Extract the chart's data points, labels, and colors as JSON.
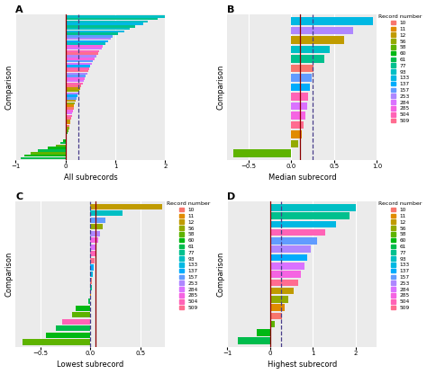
{
  "record_numbers": [
    10,
    11,
    12,
    56,
    58,
    60,
    61,
    77,
    93,
    133,
    137,
    157,
    253,
    284,
    285,
    504,
    509
  ],
  "colors": {
    "10": "#F8766D",
    "11": "#E08B00",
    "12": "#C09B00",
    "56": "#93AA00",
    "58": "#5EB300",
    "60": "#00B813",
    "61": "#00BC4C",
    "77": "#00C08E",
    "93": "#00BFC4",
    "133": "#00B8E3",
    "137": "#00ACFC",
    "157": "#619CFF",
    "253": "#AE87FF",
    "284": "#DA72FF",
    "285": "#F564E2",
    "504": "#FF63B6",
    "509": "#FF6C90"
  },
  "panel_A": {
    "title": "A",
    "xlabel": "All subrecords",
    "ylabel": "Comparison",
    "xlim": [
      -1.0,
      2.0
    ],
    "xticks": [
      -1,
      0,
      1,
      2
    ],
    "vline_solid": 0.0,
    "vline_dashed": 0.25
  },
  "panel_A_bars": [
    {
      "record": "93",
      "value": 2.0
    },
    {
      "record": "77",
      "value": 1.85
    },
    {
      "record": "93",
      "value": 1.65
    },
    {
      "record": "133",
      "value": 1.55
    },
    {
      "record": "77",
      "value": 1.4
    },
    {
      "record": "93",
      "value": 1.28
    },
    {
      "record": "133",
      "value": 1.18
    },
    {
      "record": "77",
      "value": 1.05
    },
    {
      "record": "157",
      "value": 0.95
    },
    {
      "record": "253",
      "value": 0.9
    },
    {
      "record": "137",
      "value": 0.85
    },
    {
      "record": "93",
      "value": 0.8
    },
    {
      "record": "285",
      "value": 0.75
    },
    {
      "record": "284",
      "value": 0.72
    },
    {
      "record": "504",
      "value": 0.68
    },
    {
      "record": "509",
      "value": 0.65
    },
    {
      "record": "253",
      "value": 0.62
    },
    {
      "record": "285",
      "value": 0.58
    },
    {
      "record": "157",
      "value": 0.55
    },
    {
      "record": "284",
      "value": 0.52
    },
    {
      "record": "137",
      "value": 0.5
    },
    {
      "record": "504",
      "value": 0.48
    },
    {
      "record": "509",
      "value": 0.45
    },
    {
      "record": "253",
      "value": 0.43
    },
    {
      "record": "157",
      "value": 0.4
    },
    {
      "record": "285",
      "value": 0.38
    },
    {
      "record": "284",
      "value": 0.36
    },
    {
      "record": "504",
      "value": 0.34
    },
    {
      "record": "509",
      "value": 0.32
    },
    {
      "record": "12",
      "value": 0.3
    },
    {
      "record": "56",
      "value": 0.28
    },
    {
      "record": "253",
      "value": 0.26
    },
    {
      "record": "137",
      "value": 0.24
    },
    {
      "record": "157",
      "value": 0.22
    },
    {
      "record": "12",
      "value": 0.2
    },
    {
      "record": "56",
      "value": 0.18
    },
    {
      "record": "11",
      "value": 0.17
    },
    {
      "record": "10",
      "value": 0.16
    },
    {
      "record": "285",
      "value": 0.15
    },
    {
      "record": "284",
      "value": 0.14
    },
    {
      "record": "504",
      "value": 0.13
    },
    {
      "record": "509",
      "value": 0.12
    },
    {
      "record": "12",
      "value": 0.1
    },
    {
      "record": "11",
      "value": 0.09
    },
    {
      "record": "10",
      "value": 0.08
    },
    {
      "record": "56",
      "value": 0.07
    },
    {
      "record": "58",
      "value": 0.06
    },
    {
      "record": "60",
      "value": 0.05
    },
    {
      "record": "61",
      "value": 0.03
    },
    {
      "record": "58",
      "value": 0.01
    },
    {
      "record": "60",
      "value": -0.05
    },
    {
      "record": "61",
      "value": -0.1
    },
    {
      "record": "58",
      "value": -0.2
    },
    {
      "record": "60",
      "value": -0.35
    },
    {
      "record": "61",
      "value": -0.55
    },
    {
      "record": "58",
      "value": -0.7
    },
    {
      "record": "60",
      "value": -0.82
    },
    {
      "record": "61",
      "value": -0.9
    }
  ],
  "panel_B": {
    "title": "B",
    "xlabel": "Median subrecord",
    "ylabel": "Comparison",
    "xlim": [
      -0.75,
      1.0
    ],
    "xticks": [
      -0.5,
      0.0,
      0.5,
      1.0
    ],
    "vline_solid": 0.1,
    "vline_dashed": 0.25,
    "bars": [
      {
        "record": "133",
        "value": 0.95
      },
      {
        "record": "253",
        "value": 0.72
      },
      {
        "record": "12",
        "value": 0.62
      },
      {
        "record": "93",
        "value": 0.45
      },
      {
        "record": "77",
        "value": 0.38
      },
      {
        "record": "10",
        "value": 0.26
      },
      {
        "record": "157",
        "value": 0.24
      },
      {
        "record": "137",
        "value": 0.22
      },
      {
        "record": "504",
        "value": 0.2
      },
      {
        "record": "284",
        "value": 0.18
      },
      {
        "record": "285",
        "value": 0.16
      },
      {
        "record": "509",
        "value": 0.14
      },
      {
        "record": "11",
        "value": 0.12
      },
      {
        "record": "56",
        "value": 0.08
      },
      {
        "record": "58",
        "value": -0.68
      }
    ]
  },
  "panel_C": {
    "title": "C",
    "xlabel": "Lowest subrecord",
    "ylabel": "Comparison",
    "xlim": [
      -0.75,
      0.75
    ],
    "xticks": [
      -0.5,
      0.0,
      0.5
    ],
    "vline_solid": 0.05,
    "vline_dashed": 0.0,
    "bars": [
      {
        "record": "12",
        "value": 0.72
      },
      {
        "record": "93",
        "value": 0.32
      },
      {
        "record": "157",
        "value": 0.15
      },
      {
        "record": "56",
        "value": 0.12
      },
      {
        "record": "253",
        "value": 0.1
      },
      {
        "record": "285",
        "value": 0.08
      },
      {
        "record": "284",
        "value": 0.06
      },
      {
        "record": "504",
        "value": 0.05
      },
      {
        "record": "509",
        "value": 0.04
      },
      {
        "record": "137",
        "value": 0.03
      },
      {
        "record": "133",
        "value": 0.02
      },
      {
        "record": "10",
        "value": 0.01
      },
      {
        "record": "77",
        "value": 0.01
      },
      {
        "record": "11",
        "value": 0.005
      },
      {
        "record": "61",
        "value": -0.02
      },
      {
        "record": "60",
        "value": -0.15
      },
      {
        "record": "58",
        "value": -0.18
      },
      {
        "record": "504",
        "value": -0.28
      },
      {
        "record": "61",
        "value": -0.35
      },
      {
        "record": "60",
        "value": -0.45
      },
      {
        "record": "58",
        "value": -0.68
      }
    ]
  },
  "panel_D": {
    "title": "D",
    "xlabel": "Highest subrecord",
    "ylabel": "Comparison",
    "xlim": [
      -1.0,
      2.5
    ],
    "xticks": [
      -1,
      0,
      1,
      2
    ],
    "vline_solid": 0.0,
    "vline_dashed": 0.25,
    "bars": [
      {
        "record": "93",
        "value": 2.0
      },
      {
        "record": "77",
        "value": 1.85
      },
      {
        "record": "133",
        "value": 1.55
      },
      {
        "record": "504",
        "value": 1.3
      },
      {
        "record": "157",
        "value": 1.1
      },
      {
        "record": "253",
        "value": 0.95
      },
      {
        "record": "137",
        "value": 0.88
      },
      {
        "record": "284",
        "value": 0.8
      },
      {
        "record": "285",
        "value": 0.72
      },
      {
        "record": "509",
        "value": 0.65
      },
      {
        "record": "12",
        "value": 0.55
      },
      {
        "record": "56",
        "value": 0.42
      },
      {
        "record": "11",
        "value": 0.35
      },
      {
        "record": "10",
        "value": 0.28
      },
      {
        "record": "58",
        "value": 0.12
      },
      {
        "record": "60",
        "value": -0.3
      },
      {
        "record": "61",
        "value": -0.75
      }
    ]
  },
  "bg_color": "#EBEBEB",
  "grid_color": "white",
  "solid_vline_color": "#8B0000",
  "dashed_vline_color": "#483D8B"
}
